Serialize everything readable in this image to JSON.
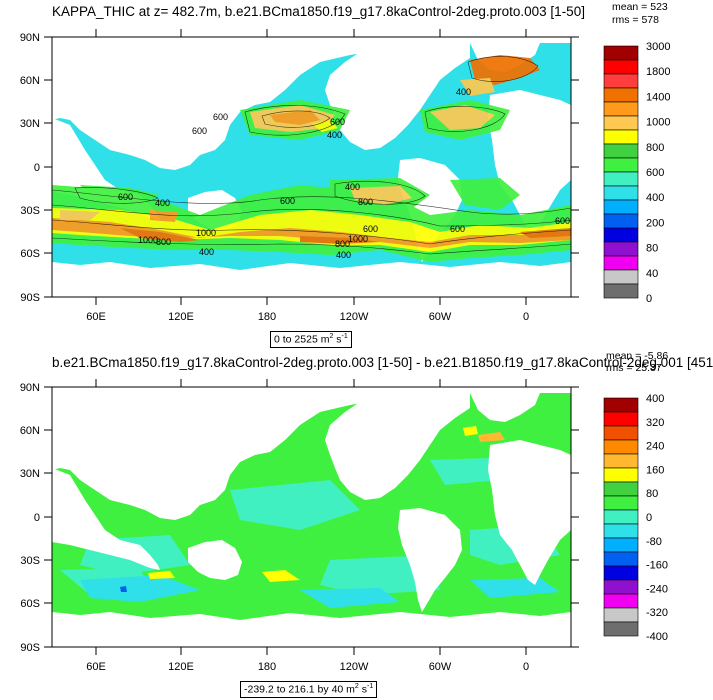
{
  "panel1": {
    "title": "KAPPA_THIC at z= 482.7m, b.e21.BCma1850.f19_g17.8kaControl-2deg.proto.003 [1-50]",
    "mean": "mean = 523",
    "rms": "rms = 578",
    "range_main": "0 to 2525 m",
    "range_exp": "2",
    "range_unit": " s",
    "range_exp2": "-1",
    "lat_labels": [
      "90N",
      "60N",
      "30N",
      "0",
      "30S",
      "60S",
      "90S"
    ],
    "lon_labels": [
      "60E",
      "120E",
      "180",
      "120W",
      "60W",
      "0"
    ],
    "colorbar": {
      "colors": [
        "#A00000",
        "#FF0000",
        "#FF3D3D",
        "#F07000",
        "#FF9A1A",
        "#FFC850",
        "#FFFF00",
        "#40D040",
        "#40F040",
        "#40F0C0",
        "#30E0E8",
        "#00B0FF",
        "#0060F0",
        "#0000E0",
        "#9010D0",
        "#F000F0",
        "#C8C8C8",
        "#6E6E6E"
      ],
      "labels": [
        "3000",
        "1800",
        "1400",
        "1000",
        "800",
        "600",
        "400",
        "200",
        "80",
        "40",
        "0"
      ]
    },
    "contour_labels": [
      "600",
      "600",
      "400",
      "600",
      "600",
      "400",
      "600",
      "800",
      "400",
      "600",
      "1000",
      "600",
      "1000",
      "800",
      "1000",
      "400",
      "400",
      "800",
      "600",
      "400"
    ]
  },
  "panel2": {
    "title": "b.e21.BCma1850.f19_g17.8kaControl-2deg.proto.003 [1-50] - b.e21.B1850.f19_g17.8kaControl-2deg.001 [451",
    "mean": "mean = -5.86",
    "rms": "rms = 25.37",
    "range_main": "-239.2 to 216.1 by 40 m",
    "range_exp": "2",
    "range_unit": " s",
    "range_exp2": "-1",
    "lat_labels": [
      "90N",
      "60N",
      "30N",
      "0",
      "30S",
      "60S",
      "90S"
    ],
    "lon_labels": [
      "60E",
      "120E",
      "180",
      "120W",
      "60W",
      "0"
    ],
    "colorbar": {
      "colors": [
        "#A00000",
        "#FF0000",
        "#F05000",
        "#FF8A00",
        "#FFB830",
        "#FFFF00",
        "#40D040",
        "#40F040",
        "#40F0C0",
        "#30E0E8",
        "#00B0FF",
        "#0060F0",
        "#0000E0",
        "#9010D0",
        "#F000F0",
        "#C8C8C8",
        "#6E6E6E"
      ],
      "labels": [
        "400",
        "320",
        "240",
        "160",
        "80",
        "0",
        "-80",
        "-160",
        "-240",
        "-320",
        "-400"
      ]
    }
  }
}
